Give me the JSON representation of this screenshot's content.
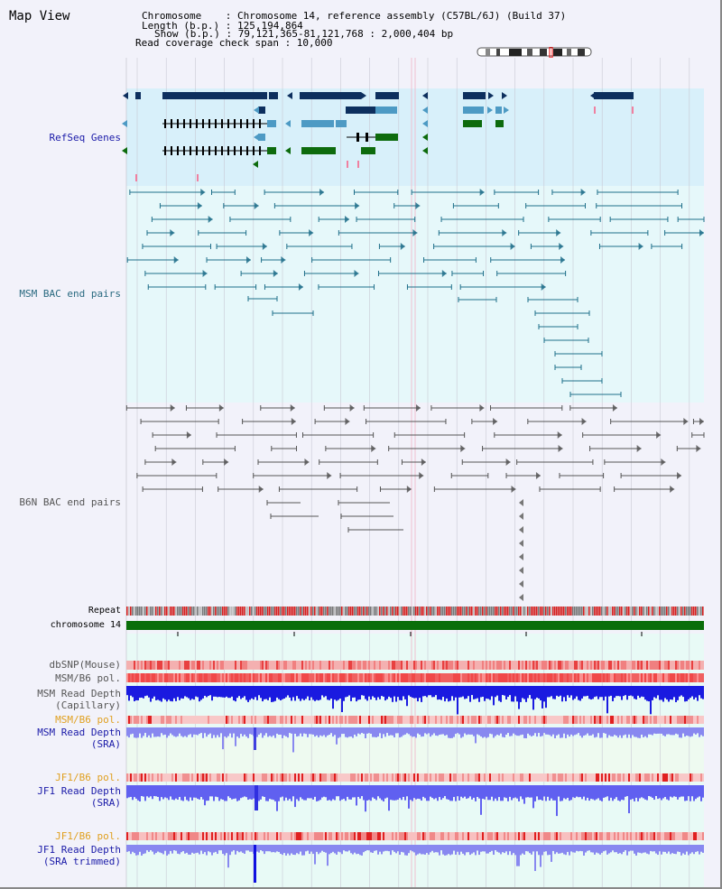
{
  "header": {
    "title": "Map View",
    "info_lines": [
      "Chromosome    : Chromosome 14, reference assembly (C57BL/6J) (Build 37)",
      "Length (b.p.) : 125,194,864",
      "Show (b.p.) : 79,121,365-81,121,768 : 2,000,404 bp",
      "Read coverage check span : 10,000"
    ]
  },
  "tracks": {
    "refseq": "RefSeq Genes",
    "msm_bac": "MSM BAC end pairs",
    "b6n_bac": "B6N BAC end pairs",
    "repeat": "Repeat",
    "chromosome": "chromosome 14",
    "dbsnp": "dbSNP(Mouse)",
    "msm_b6_pol": "MSM/B6 pol.",
    "msm_depth_cap_1": "MSM Read Depth",
    "msm_depth_cap_2": "(Capillary)",
    "msm_b6_pol2": "MSM/B6 pol.",
    "msm_depth_sra_1": "MSM Read Depth",
    "msm_depth_sra_2": "(SRA)",
    "jf1_b6_pol": "JF1/B6 pol.",
    "jf1_depth_sra_1": "JF1 Read Depth",
    "jf1_depth_sra_2": "(SRA)",
    "jf1_b6_pol2": "JF1/B6 pol.",
    "jf1_depth_trim_1": "JF1 Read Depth",
    "jf1_depth_trim_2": "(SRA trimmed)"
  },
  "axis": {
    "ticks": [
      "79200000",
      "79600000",
      "80000000",
      "80400000",
      "80800000"
    ]
  },
  "colors": {
    "label_blue": "#1a1aa8",
    "label_teal": "#2a6a80",
    "label_gray": "#555555",
    "label_orange": "#e0a020",
    "gene_dark": "#0d2f5e",
    "gene_mid": "#4d9ac4",
    "gene_green": "#0d6b0d",
    "bac_teal": "#1f6f8a",
    "chrom_green": "#0a6e0a"
  }
}
